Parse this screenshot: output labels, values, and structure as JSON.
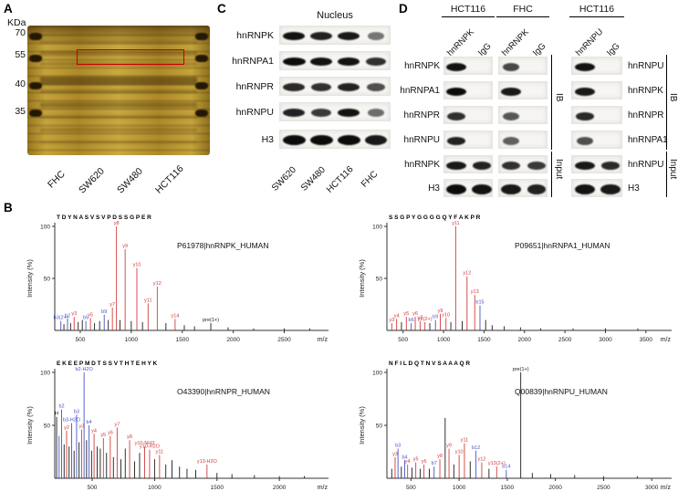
{
  "colors": {
    "y": "#d23c3c",
    "b": "#4953c8",
    "x": "#1a1a1a",
    "accent_red": "#c80000",
    "gel_gold": "#c2a23a"
  },
  "panels": {
    "a": {
      "label": "A",
      "kda_label": "KDa",
      "markers": [
        "70",
        "55",
        "40",
        "35"
      ],
      "lanes": [
        "FHC",
        "SW620",
        "SW480",
        "HCT116"
      ]
    },
    "b": {
      "label": "B"
    },
    "c": {
      "label": "C",
      "title": "Nucleus",
      "lanes": [
        "SW620",
        "SW480",
        "HCT116",
        "FHC"
      ],
      "rows": [
        {
          "label": "hnRNPK",
          "bands": [
            0.95,
            0.85,
            0.9,
            0.3
          ]
        },
        {
          "label": "hnRNPA1",
          "bands": [
            1,
            0.95,
            0.95,
            0.75
          ]
        },
        {
          "label": "hnRNPR",
          "bands": [
            0.8,
            0.75,
            0.85,
            0.55
          ]
        },
        {
          "label": "hnRNPU",
          "bands": [
            0.85,
            0.7,
            0.95,
            0.35
          ]
        },
        {
          "label": "H3",
          "bands": [
            1,
            1,
            1,
            0.9
          ]
        }
      ]
    },
    "d": {
      "label": "D",
      "left": {
        "groups": [
          "HCT116",
          "FHC"
        ],
        "lane_labels": [
          "hnRNPK",
          "IgG",
          "hnRNPK",
          "IgG"
        ],
        "ib_label": "IB",
        "input_label": "Input",
        "ib_rows": [
          {
            "label": "hnRNPK",
            "bands": [
              0.95,
              0,
              0.6,
              0
            ]
          },
          {
            "label": "hnRNPA1",
            "bands": [
              1,
              0,
              0.9,
              0
            ]
          },
          {
            "label": "hnRNPR",
            "bands": [
              0.75,
              0,
              0.5,
              0
            ]
          },
          {
            "label": "hnRNPU",
            "bands": [
              0.85,
              0,
              0.45,
              0
            ]
          }
        ],
        "input_rows": [
          {
            "label": "hnRNPK",
            "bands": [
              0.9,
              0.85,
              0.75,
              0.7
            ]
          },
          {
            "label": "H3",
            "bands": [
              1,
              0.95,
              0.9,
              0.85
            ]
          }
        ]
      },
      "right": {
        "groups": [
          "HCT116"
        ],
        "lane_labels": [
          "hnRNPU",
          "IgG"
        ],
        "ib_label": "IB",
        "input_label": "Input",
        "ib_rows": [
          {
            "label": "hnRNPU",
            "bands": [
              0.95,
              0
            ]
          },
          {
            "label": "hnRNPK",
            "bands": [
              0.9,
              0
            ]
          },
          {
            "label": "hnRNPR",
            "bands": [
              0.8,
              0
            ]
          },
          {
            "label": "hnRNPA1",
            "bands": [
              0.55,
              0
            ]
          }
        ],
        "input_rows": [
          {
            "label": "hnRNPU",
            "bands": [
              0.9,
              0.8
            ]
          },
          {
            "label": "H3",
            "bands": [
              0.95,
              0.9
            ]
          }
        ]
      }
    }
  },
  "chart_data": [
    {
      "type": "line",
      "subtype": "ms2_spectrum",
      "sequence": "TDYNASVSVPDSSGPER",
      "protein": "P61978|hnRNPK_HUMAN",
      "xlabel": "m/z",
      "ylabel": "Intensity (%)",
      "yticks": [
        100,
        50
      ],
      "xticks": [
        500,
        1000,
        1500,
        2000,
        2500
      ],
      "xlim": [
        250,
        2880
      ],
      "ylim": [
        0,
        100
      ],
      "peaks": [
        [
          310,
          9,
          "b",
          "b3(2+)"
        ],
        [
          340,
          6,
          "x",
          ""
        ],
        [
          375,
          11,
          "b",
          "b2"
        ],
        [
          405,
          7,
          "x",
          ""
        ],
        [
          440,
          13,
          "y",
          "y3"
        ],
        [
          480,
          8,
          "x",
          ""
        ],
        [
          520,
          10,
          "x",
          ""
        ],
        [
          555,
          9,
          "b",
          "b5"
        ],
        [
          600,
          12,
          "y",
          "y5"
        ],
        [
          640,
          7,
          "x",
          ""
        ],
        [
          690,
          9,
          "x",
          ""
        ],
        [
          735,
          15,
          "b",
          "b9"
        ],
        [
          775,
          10,
          "x",
          ""
        ],
        [
          815,
          22,
          "y",
          "y7"
        ],
        [
          855,
          100,
          "y",
          "y8"
        ],
        [
          890,
          10,
          "x",
          ""
        ],
        [
          940,
          78,
          "y",
          "y9"
        ],
        [
          1000,
          9,
          "x",
          ""
        ],
        [
          1055,
          60,
          "y",
          "y10"
        ],
        [
          1110,
          8,
          "x",
          ""
        ],
        [
          1165,
          26,
          "y",
          "y11"
        ],
        [
          1255,
          42,
          "y",
          "y12"
        ],
        [
          1340,
          7,
          "x",
          ""
        ],
        [
          1430,
          11,
          "y",
          "y14"
        ],
        [
          1520,
          5,
          "x",
          ""
        ],
        [
          1620,
          4,
          "x",
          ""
        ],
        [
          1780,
          7,
          "x",
          "pre(1+)"
        ],
        [
          1950,
          3,
          "x",
          ""
        ],
        [
          2200,
          2,
          "x",
          ""
        ],
        [
          2500,
          2,
          "x",
          ""
        ],
        [
          2750,
          2,
          "x",
          ""
        ]
      ]
    },
    {
      "type": "line",
      "subtype": "ms2_spectrum",
      "sequence": "SSGPYGGGGQYFAKPR",
      "protein": "P09651|hnRNPA1_HUMAN",
      "xlabel": "m/z",
      "ylabel": "Intensity (%)",
      "yticks": [
        100,
        50
      ],
      "xticks": [
        500,
        1000,
        1500,
        2000,
        2500,
        3000,
        3500
      ],
      "xlim": [
        300,
        3750
      ],
      "ylim": [
        0,
        100
      ],
      "peaks": [
        [
          360,
          7,
          "y",
          "y3"
        ],
        [
          420,
          11,
          "y",
          "y4"
        ],
        [
          480,
          8,
          "x",
          ""
        ],
        [
          540,
          13,
          "y",
          "y5"
        ],
        [
          600,
          7,
          "b",
          "b6"
        ],
        [
          650,
          13,
          "y",
          "y6"
        ],
        [
          710,
          9,
          "y",
          "y7"
        ],
        [
          770,
          8,
          "y",
          "y8(2+)"
        ],
        [
          830,
          7,
          "x",
          ""
        ],
        [
          900,
          10,
          "b",
          "b9"
        ],
        [
          960,
          16,
          "y",
          "y9"
        ],
        [
          1030,
          12,
          "y",
          "y10"
        ],
        [
          1090,
          8,
          "x",
          ""
        ],
        [
          1150,
          100,
          "y",
          "y11"
        ],
        [
          1230,
          9,
          "x",
          ""
        ],
        [
          1290,
          52,
          "y",
          "y12"
        ],
        [
          1385,
          34,
          "y",
          "y13"
        ],
        [
          1450,
          24,
          "b",
          "b15"
        ],
        [
          1520,
          10,
          "x",
          ""
        ],
        [
          1600,
          5,
          "x",
          ""
        ],
        [
          1750,
          4,
          "x",
          ""
        ],
        [
          1950,
          3,
          "x",
          ""
        ],
        [
          2200,
          2,
          "x",
          ""
        ],
        [
          2600,
          2,
          "x",
          ""
        ],
        [
          3000,
          2,
          "x",
          ""
        ],
        [
          3400,
          2,
          "x",
          ""
        ]
      ]
    },
    {
      "type": "line",
      "subtype": "ms2_spectrum",
      "sequence": "EKEEPMDTSSVTHTEHYK",
      "protein": "O43390|hnRNPR_HUMAN",
      "xlabel": "m/z",
      "ylabel": "Intensity (%)",
      "yticks": [
        100,
        50
      ],
      "xticks": [
        500,
        1000,
        1500,
        2000
      ],
      "xlim": [
        200,
        2350
      ],
      "ylim": [
        0,
        100
      ],
      "peaks": [
        [
          215,
          58,
          "x",
          "H"
        ],
        [
          235,
          40,
          "b",
          ""
        ],
        [
          255,
          65,
          "b",
          "b2"
        ],
        [
          275,
          32,
          "x",
          ""
        ],
        [
          295,
          45,
          "y",
          "y2"
        ],
        [
          315,
          30,
          "x",
          ""
        ],
        [
          335,
          52,
          "b",
          "b3-H2O"
        ],
        [
          355,
          26,
          "x",
          ""
        ],
        [
          375,
          60,
          "b",
          "b3"
        ],
        [
          395,
          34,
          "x",
          ""
        ],
        [
          415,
          46,
          "y",
          "y3"
        ],
        [
          435,
          100,
          "b",
          "b2-H2O"
        ],
        [
          455,
          36,
          "x",
          ""
        ],
        [
          475,
          50,
          "b",
          "b4"
        ],
        [
          495,
          26,
          "x",
          ""
        ],
        [
          515,
          42,
          "y",
          "y4"
        ],
        [
          540,
          30,
          "x",
          ""
        ],
        [
          565,
          28,
          "x",
          ""
        ],
        [
          590,
          38,
          "y",
          "y5"
        ],
        [
          615,
          24,
          "x",
          ""
        ],
        [
          645,
          40,
          "y",
          "y6"
        ],
        [
          670,
          20,
          "x",
          ""
        ],
        [
          700,
          48,
          "y",
          "y7"
        ],
        [
          730,
          18,
          "x",
          ""
        ],
        [
          765,
          28,
          "x",
          ""
        ],
        [
          800,
          36,
          "y",
          "y8"
        ],
        [
          840,
          16,
          "x",
          ""
        ],
        [
          880,
          24,
          "x",
          ""
        ],
        [
          920,
          30,
          "y",
          "y10-NH3"
        ],
        [
          960,
          27,
          "y",
          "y10-H2O"
        ],
        [
          1000,
          18,
          "x",
          ""
        ],
        [
          1040,
          22,
          "y",
          "y11"
        ],
        [
          1090,
          13,
          "x",
          ""
        ],
        [
          1140,
          17,
          "x",
          ""
        ],
        [
          1200,
          11,
          "x",
          ""
        ],
        [
          1260,
          9,
          "x",
          ""
        ],
        [
          1330,
          8,
          "x",
          ""
        ],
        [
          1420,
          13,
          "y",
          "y13-H2O"
        ],
        [
          1500,
          5,
          "x",
          ""
        ],
        [
          1620,
          4,
          "x",
          ""
        ],
        [
          1800,
          3,
          "x",
          ""
        ],
        [
          2000,
          2,
          "x",
          ""
        ],
        [
          2200,
          2,
          "x",
          ""
        ]
      ]
    },
    {
      "type": "line",
      "subtype": "ms2_spectrum",
      "sequence": "NFILDQTNVSAAAQR",
      "protein": "Q00839|hnRNPU_HUMAN",
      "xlabel": "m/z",
      "ylabel": "Intensity (%)",
      "yticks": [
        100,
        50
      ],
      "xticks": [
        500,
        1000,
        1500,
        2000,
        2500,
        3000
      ],
      "xlim": [
        250,
        3150
      ],
      "ylim": [
        0,
        100
      ],
      "peaks": [
        [
          300,
          9,
          "x",
          ""
        ],
        [
          335,
          20,
          "y",
          "y3"
        ],
        [
          365,
          28,
          "b",
          "b3"
        ],
        [
          400,
          11,
          "x",
          ""
        ],
        [
          435,
          17,
          "b",
          "b4"
        ],
        [
          465,
          13,
          "y",
          "y4"
        ],
        [
          510,
          10,
          "x",
          ""
        ],
        [
          550,
          15,
          "y",
          "y5"
        ],
        [
          595,
          9,
          "x",
          ""
        ],
        [
          635,
          13,
          "y",
          "y6"
        ],
        [
          690,
          9,
          "x",
          ""
        ],
        [
          740,
          11,
          "b",
          "b7"
        ],
        [
          800,
          18,
          "y",
          "y8"
        ],
        [
          855,
          57,
          "x",
          ""
        ],
        [
          895,
          28,
          "y",
          "y9"
        ],
        [
          945,
          13,
          "x",
          ""
        ],
        [
          1000,
          22,
          "y",
          "y10"
        ],
        [
          1055,
          33,
          "y",
          "y11"
        ],
        [
          1115,
          16,
          "x",
          ""
        ],
        [
          1175,
          26,
          "b",
          "b12"
        ],
        [
          1235,
          15,
          "y",
          "y12"
        ],
        [
          1310,
          9,
          "x",
          ""
        ],
        [
          1390,
          11,
          "y",
          "y13(2+)"
        ],
        [
          1490,
          8,
          "b",
          "b14"
        ],
        [
          1640,
          100,
          "x",
          "pre(1+)"
        ],
        [
          1760,
          5,
          "x",
          ""
        ],
        [
          1950,
          4,
          "x",
          ""
        ],
        [
          2200,
          3,
          "x",
          ""
        ],
        [
          2500,
          2,
          "x",
          ""
        ],
        [
          2850,
          2,
          "x",
          ""
        ]
      ]
    }
  ]
}
